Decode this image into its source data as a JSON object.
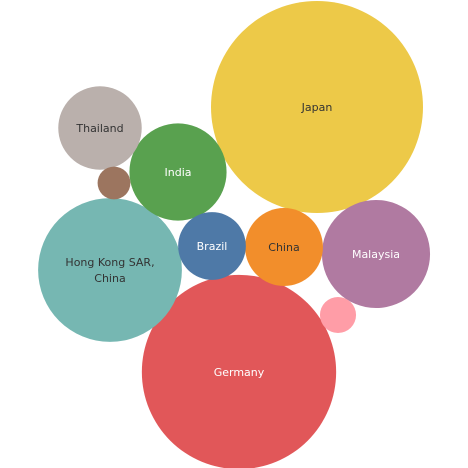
{
  "chart_data": {
    "type": "bubble",
    "items": [
      {
        "name": "Japan",
        "label_lines": [
          "Japan"
        ],
        "value": 100,
        "color": "#EDC948",
        "text_color": "#333333"
      },
      {
        "name": "Germany",
        "label_lines": [
          "Germany"
        ],
        "value": 84,
        "color": "#E15759",
        "text_color": "#ffffff"
      },
      {
        "name": "Hong Kong",
        "label_lines": [
          "Hong Kong SAR,",
          "China"
        ],
        "value": 46,
        "color": "#76B7B2",
        "text_color": "#333333"
      },
      {
        "name": "Malaysia",
        "label_lines": [
          "Malaysia"
        ],
        "value": 26,
        "color": "#B07AA1",
        "text_color": "#ffffff"
      },
      {
        "name": "India",
        "label_lines": [
          "India"
        ],
        "value": 21,
        "color": "#59A14F",
        "text_color": "#ffffff"
      },
      {
        "name": "Thailand",
        "label_lines": [
          "Thailand"
        ],
        "value": 15.5,
        "color": "#BAB0AC",
        "text_color": "#333333"
      },
      {
        "name": "China",
        "label_lines": [
          "China"
        ],
        "value": 13.5,
        "color": "#F28E2B",
        "text_color": "#333333"
      },
      {
        "name": "Brazil",
        "label_lines": [
          "Brazil"
        ],
        "value": 10.2,
        "color": "#4E79A7",
        "text_color": "#ffffff"
      },
      {
        "name": "unlabeled pink",
        "label_lines": [],
        "value": 2.9,
        "color": "#FF9DA7",
        "text_color": "#333333"
      },
      {
        "name": "unlabeled brown",
        "label_lines": [],
        "value": 2.4,
        "color": "#9C755F",
        "text_color": "#333333"
      }
    ]
  }
}
